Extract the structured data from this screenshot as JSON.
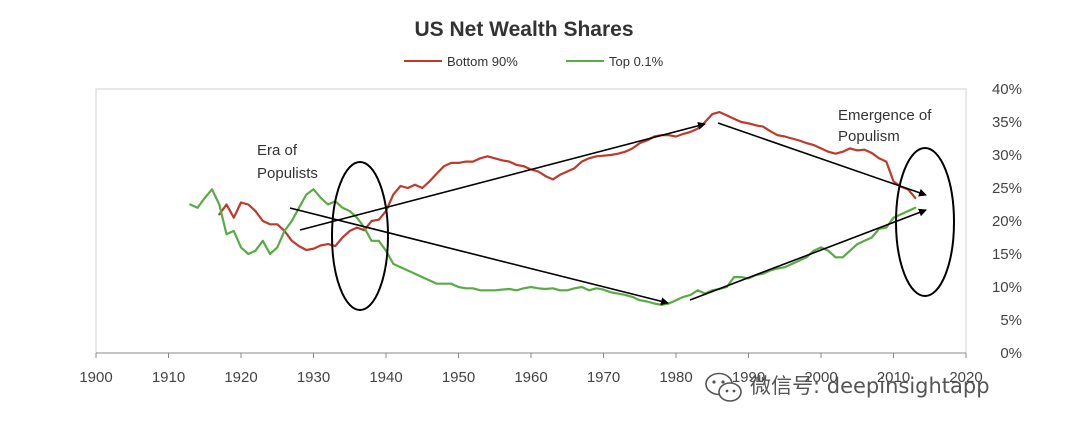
{
  "chart_data": {
    "type": "line",
    "title": "US Net Wealth Shares",
    "xlabel": "",
    "ylabel": "",
    "xlim": [
      1900,
      2020
    ],
    "ylim": [
      0,
      40
    ],
    "x_ticks": [
      "1900",
      "1910",
      "1920",
      "1930",
      "1940",
      "1950",
      "1960",
      "1970",
      "1980",
      "1990",
      "2000",
      "2010",
      "2020"
    ],
    "y_ticks": [
      "0%",
      "5%",
      "10%",
      "15%",
      "20%",
      "25%",
      "30%",
      "35%",
      "40%"
    ],
    "legend_position": "top-center",
    "grid": false,
    "series": [
      {
        "name": "Bottom 90%",
        "color": "#c0392b",
        "x": [
          1917,
          1918,
          1919,
          1920,
          1921,
          1922,
          1923,
          1924,
          1925,
          1926,
          1927,
          1928,
          1929,
          1930,
          1931,
          1932,
          1933,
          1934,
          1935,
          1936,
          1937,
          1938,
          1939,
          1940,
          1941,
          1942,
          1943,
          1944,
          1945,
          1946,
          1947,
          1948,
          1949,
          1950,
          1951,
          1952,
          1953,
          1954,
          1955,
          1956,
          1957,
          1958,
          1959,
          1960,
          1961,
          1962,
          1963,
          1964,
          1965,
          1966,
          1967,
          1968,
          1969,
          1970,
          1971,
          1972,
          1973,
          1974,
          1975,
          1976,
          1977,
          1978,
          1979,
          1980,
          1981,
          1982,
          1983,
          1984,
          1985,
          1986,
          1987,
          1988,
          1989,
          1990,
          1991,
          1992,
          1993,
          1994,
          1995,
          1996,
          1997,
          1998,
          1999,
          2000,
          2001,
          2002,
          2003,
          2004,
          2005,
          2006,
          2007,
          2008,
          2009,
          2010,
          2011,
          2012,
          2013
        ],
        "values": [
          21,
          22.5,
          20.5,
          22.8,
          22.5,
          21.5,
          20,
          19.5,
          19.5,
          18.5,
          17,
          16.2,
          15.6,
          15.8,
          16.3,
          16.5,
          16.2,
          17.5,
          18.5,
          19,
          18.6,
          20,
          20.2,
          21.5,
          24,
          25.3,
          25,
          25.5,
          25,
          26,
          27.2,
          28.3,
          28.8,
          28.8,
          29,
          29,
          29.5,
          29.8,
          29.5,
          29.2,
          29,
          28.5,
          28.3,
          27.8,
          27.5,
          26.8,
          26.3,
          27,
          27.5,
          28,
          29,
          29.5,
          29.8,
          29.9,
          30,
          30.2,
          30.5,
          31,
          31.8,
          32.2,
          32.8,
          33,
          33,
          32.8,
          33.2,
          33.5,
          34,
          35,
          36.2,
          36.5,
          36,
          35.5,
          35,
          34.8,
          34.5,
          34.3,
          33.6,
          33,
          32.8,
          32.5,
          32.2,
          31.8,
          31.5,
          31,
          30.5,
          30.2,
          30.5,
          31,
          30.7,
          30.8,
          30.3,
          29.5,
          29,
          26,
          25.2,
          24.8,
          23.5
        ]
      },
      {
        "name": "Top 0.1%",
        "color": "#5aaa46",
        "x": [
          1913,
          1914,
          1915,
          1916,
          1917,
          1918,
          1919,
          1920,
          1921,
          1922,
          1923,
          1924,
          1925,
          1926,
          1927,
          1928,
          1929,
          1930,
          1931,
          1932,
          1933,
          1934,
          1935,
          1936,
          1937,
          1938,
          1939,
          1940,
          1941,
          1942,
          1943,
          1944,
          1945,
          1946,
          1947,
          1948,
          1949,
          1950,
          1951,
          1952,
          1953,
          1954,
          1955,
          1956,
          1957,
          1958,
          1959,
          1960,
          1961,
          1962,
          1963,
          1964,
          1965,
          1966,
          1967,
          1968,
          1969,
          1970,
          1971,
          1972,
          1973,
          1974,
          1975,
          1976,
          1977,
          1978,
          1979,
          1980,
          1981,
          1982,
          1983,
          1984,
          1985,
          1986,
          1987,
          1988,
          1989,
          1990,
          1991,
          1992,
          1993,
          1994,
          1995,
          1996,
          1997,
          1998,
          1999,
          2000,
          2001,
          2002,
          2003,
          2004,
          2005,
          2006,
          2007,
          2008,
          2009,
          2010,
          2011,
          2012,
          2013
        ],
        "values": [
          22.5,
          22,
          23.5,
          24.8,
          22.5,
          18,
          18.5,
          16,
          15,
          15.5,
          17,
          15,
          16,
          18.5,
          20,
          22,
          24,
          24.8,
          23.5,
          22.5,
          23,
          22,
          21.5,
          20.5,
          19,
          17,
          17,
          15.5,
          13.5,
          13,
          12.5,
          12,
          11.5,
          11,
          10.5,
          10.5,
          10.5,
          10,
          9.8,
          9.8,
          9.5,
          9.5,
          9.5,
          9.6,
          9.7,
          9.5,
          9.8,
          10,
          9.8,
          9.7,
          9.8,
          9.5,
          9.5,
          9.8,
          10,
          9.5,
          9.8,
          9.6,
          9.2,
          9,
          8.8,
          8.5,
          8,
          7.8,
          7.5,
          7.3,
          7.5,
          8,
          8.5,
          8.8,
          9.5,
          9,
          9.5,
          9.7,
          10,
          11.5,
          11.5,
          11.3,
          11.8,
          12,
          12.5,
          12.8,
          13,
          13.5,
          14,
          14.5,
          15.5,
          16,
          15.5,
          14.5,
          14.5,
          15.5,
          16.5,
          17,
          17.5,
          18.8,
          19,
          20.5,
          21,
          21.5,
          22
        ]
      }
    ],
    "annotations": [
      {
        "text_lines": [
          "Era of",
          "Populists"
        ]
      },
      {
        "text_lines": [
          "Emergence of",
          "Populism"
        ]
      }
    ]
  },
  "watermark": "微信号: deepinsightapp"
}
